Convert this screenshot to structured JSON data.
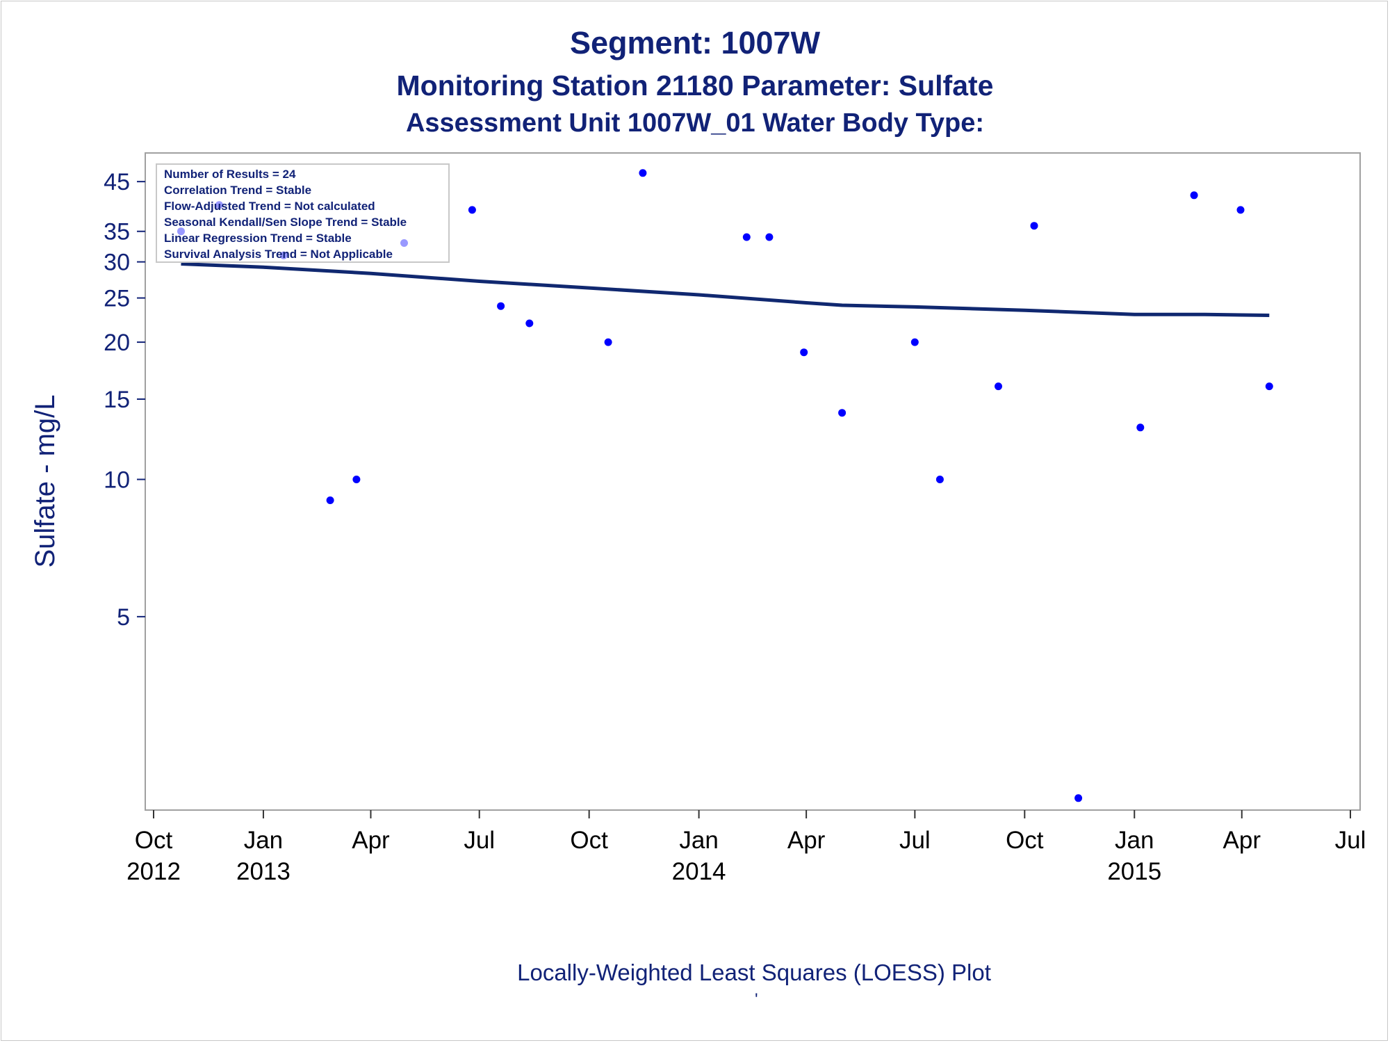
{
  "titles": {
    "line1": "Segment: 1007W",
    "line2": "Monitoring Station 21180 Parameter: Sulfate",
    "line3": "Assessment Unit 1007W_01   Water Body Type:"
  },
  "footnote": "Locally-Weighted Least Squares (LOESS) Plot",
  "footnote_mark": "'",
  "colors": {
    "text": "#112277",
    "points": "#0000ff",
    "loess": "#102870",
    "frame": "#a0a0a0"
  },
  "chart_data": {
    "type": "scatter",
    "ylabel": "Sulfate - mg/L",
    "y_scale": "log",
    "ylim": [
      1.95,
      52
    ],
    "xlim": [
      "2012-10-01",
      "2015-07-01"
    ],
    "y_ticks": [
      5,
      10,
      15,
      20,
      25,
      30,
      35,
      45
    ],
    "x_ticks": [
      {
        "date": "2012-10-01",
        "month": "Oct",
        "year": "2012"
      },
      {
        "date": "2013-01-01",
        "month": "Jan",
        "year": "2013"
      },
      {
        "date": "2013-04-01",
        "month": "Apr",
        "year": ""
      },
      {
        "date": "2013-07-01",
        "month": "Jul",
        "year": ""
      },
      {
        "date": "2013-10-01",
        "month": "Oct",
        "year": ""
      },
      {
        "date": "2014-01-01",
        "month": "Jan",
        "year": "2014"
      },
      {
        "date": "2014-04-01",
        "month": "Apr",
        "year": ""
      },
      {
        "date": "2014-07-01",
        "month": "Jul",
        "year": ""
      },
      {
        "date": "2014-10-01",
        "month": "Oct",
        "year": ""
      },
      {
        "date": "2015-01-01",
        "month": "Jan",
        "year": "2015"
      },
      {
        "date": "2015-04-01",
        "month": "Apr",
        "year": ""
      },
      {
        "date": "2015-07-01",
        "month": "Jul",
        "year": ""
      }
    ],
    "legend_location": "top-left",
    "legend": [
      "Number of Results = 24",
      "Correlation Trend = Stable",
      "Flow-Adjusted Trend = Not calculated",
      "Seasonal Kendall/Sen Slope Trend = Stable",
      "Linear Regression Trend = Stable",
      "Survival Analysis Trend = Not Applicable"
    ],
    "series": [
      {
        "type": "scatter",
        "points": [
          {
            "x": "2012-10-24",
            "y": 35
          },
          {
            "x": "2012-11-25",
            "y": 40
          },
          {
            "x": "2013-01-18",
            "y": 31
          },
          {
            "x": "2013-02-26",
            "y": 9
          },
          {
            "x": "2013-03-20",
            "y": 10
          },
          {
            "x": "2013-04-29",
            "y": 33
          },
          {
            "x": "2013-06-25",
            "y": 39
          },
          {
            "x": "2013-07-19",
            "y": 24
          },
          {
            "x": "2013-08-12",
            "y": 22
          },
          {
            "x": "2013-10-17",
            "y": 20
          },
          {
            "x": "2013-11-15",
            "y": 47
          },
          {
            "x": "2014-02-10",
            "y": 34
          },
          {
            "x": "2014-03-01",
            "y": 34
          },
          {
            "x": "2014-03-30",
            "y": 19
          },
          {
            "x": "2014-05-01",
            "y": 14
          },
          {
            "x": "2014-07-01",
            "y": 20
          },
          {
            "x": "2014-07-22",
            "y": 10
          },
          {
            "x": "2014-09-09",
            "y": 16
          },
          {
            "x": "2014-10-09",
            "y": 36
          },
          {
            "x": "2014-11-15",
            "y": 2
          },
          {
            "x": "2015-01-06",
            "y": 13
          },
          {
            "x": "2015-02-20",
            "y": 42
          },
          {
            "x": "2015-03-31",
            "y": 39
          },
          {
            "x": "2015-04-24",
            "y": 16
          }
        ]
      },
      {
        "type": "line",
        "points": [
          {
            "x": "2012-10-24",
            "y": 29.7
          },
          {
            "x": "2013-01-01",
            "y": 29.2
          },
          {
            "x": "2013-04-01",
            "y": 28.3
          },
          {
            "x": "2013-07-01",
            "y": 27.2
          },
          {
            "x": "2013-10-01",
            "y": 26.3
          },
          {
            "x": "2014-01-01",
            "y": 25.4
          },
          {
            "x": "2014-04-01",
            "y": 24.4
          },
          {
            "x": "2014-05-01",
            "y": 24.1
          },
          {
            "x": "2014-07-01",
            "y": 23.9
          },
          {
            "x": "2014-10-01",
            "y": 23.5
          },
          {
            "x": "2015-01-01",
            "y": 23.0
          },
          {
            "x": "2015-03-01",
            "y": 23.0
          },
          {
            "x": "2015-04-24",
            "y": 22.9
          }
        ]
      }
    ]
  }
}
